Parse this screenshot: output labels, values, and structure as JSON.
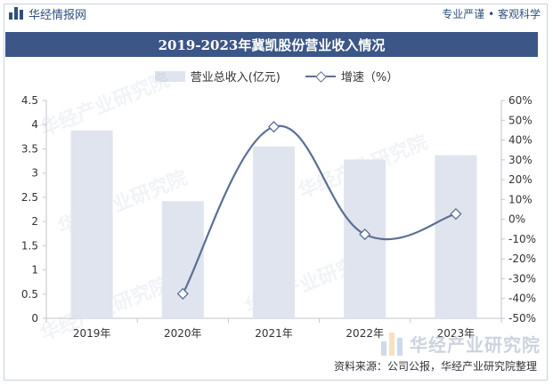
{
  "header": {
    "brand": "华经情报网",
    "tagline": "专业严谨 • 客观科学"
  },
  "watermark": {
    "text": "华经产业研究院",
    "corner_text": "华经产业研究院"
  },
  "source": "资料来源：公司公报，华经产业研究院整理",
  "colors": {
    "title_bg": "#3c5687",
    "bar": "#dfe4ee",
    "line": "#5b6f93"
  },
  "chart_data": {
    "type": "bar",
    "title": "2019-2023年冀凯股份营业收入情况",
    "categories": [
      "2019年",
      "2020年",
      "2021年",
      "2022年",
      "2023年"
    ],
    "series": [
      {
        "name": "营业总收入(亿元)",
        "type": "bar",
        "axis": "left",
        "values": [
          3.88,
          2.42,
          3.55,
          3.28,
          3.37
        ]
      },
      {
        "name": "增速（%）",
        "type": "line",
        "axis": "right",
        "values": [
          null,
          -37.6,
          46.7,
          -7.6,
          2.7
        ]
      }
    ],
    "y_left": {
      "range": [
        0,
        4.5
      ],
      "ticks": [
        "0",
        "0.5",
        "1",
        "1.5",
        "2",
        "2.5",
        "3",
        "3.5",
        "4",
        "4.5"
      ]
    },
    "y_right": {
      "range": [
        -50,
        60
      ],
      "ticks": [
        "-50%",
        "-40%",
        "-30%",
        "-20%",
        "-10%",
        "0%",
        "10%",
        "20%",
        "30%",
        "40%",
        "50%",
        "60%"
      ]
    },
    "grid": false,
    "legend": "top-center"
  }
}
